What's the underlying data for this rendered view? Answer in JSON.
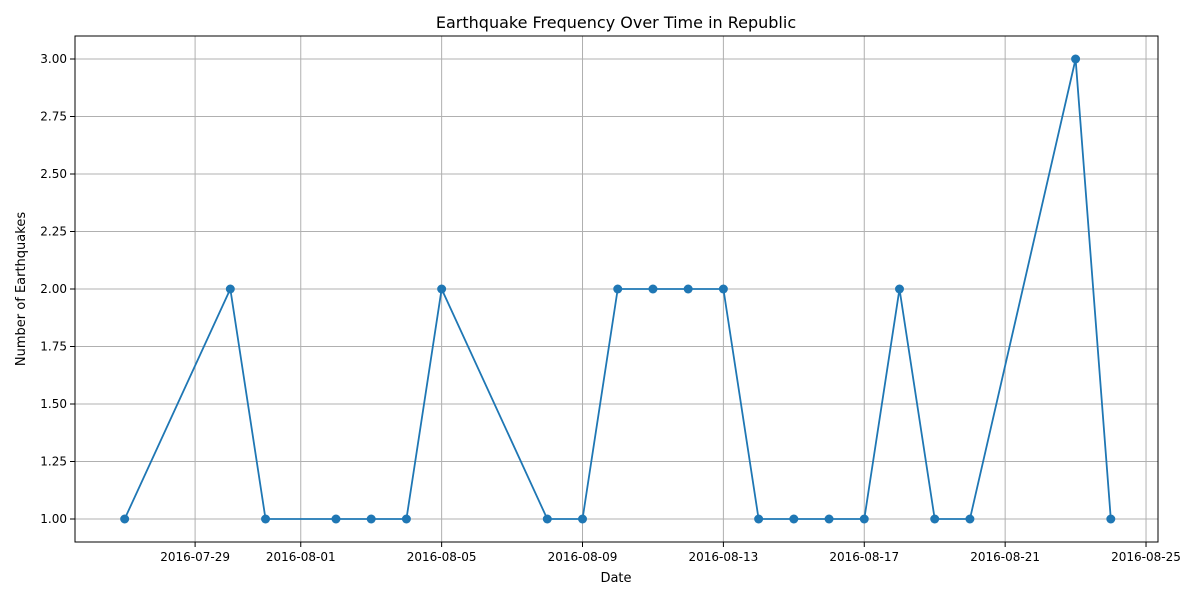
{
  "chart_data": {
    "type": "line",
    "title": "Earthquake Frequency Over Time in Republic",
    "xlabel": "Date",
    "ylabel": "Number of Earthquakes",
    "x_ticks": [
      "2016-07-29",
      "2016-08-01",
      "2016-08-05",
      "2016-08-09",
      "2016-08-13",
      "2016-08-17",
      "2016-08-21",
      "2016-08-25"
    ],
    "y_ticks": [
      "1.00",
      "1.25",
      "1.50",
      "1.75",
      "2.00",
      "2.25",
      "2.50",
      "2.75",
      "3.00"
    ],
    "xlim": [
      "2016-07-25",
      "2016-08-25"
    ],
    "ylim": [
      0.9,
      3.1
    ],
    "grid": true,
    "color": "#1f77b4",
    "series": [
      {
        "x": [
          "2016-07-27",
          "2016-07-30",
          "2016-07-31",
          "2016-08-02",
          "2016-08-03",
          "2016-08-04",
          "2016-08-05",
          "2016-08-08",
          "2016-08-09",
          "2016-08-10",
          "2016-08-11",
          "2016-08-12",
          "2016-08-13",
          "2016-08-14",
          "2016-08-15",
          "2016-08-16",
          "2016-08-17",
          "2016-08-18",
          "2016-08-19",
          "2016-08-20",
          "2016-08-23",
          "2016-08-24"
        ],
        "values": [
          1,
          2,
          1,
          1,
          1,
          1,
          2,
          1,
          1,
          2,
          2,
          2,
          2,
          1,
          1,
          1,
          1,
          2,
          1,
          1,
          3,
          1
        ]
      }
    ]
  }
}
